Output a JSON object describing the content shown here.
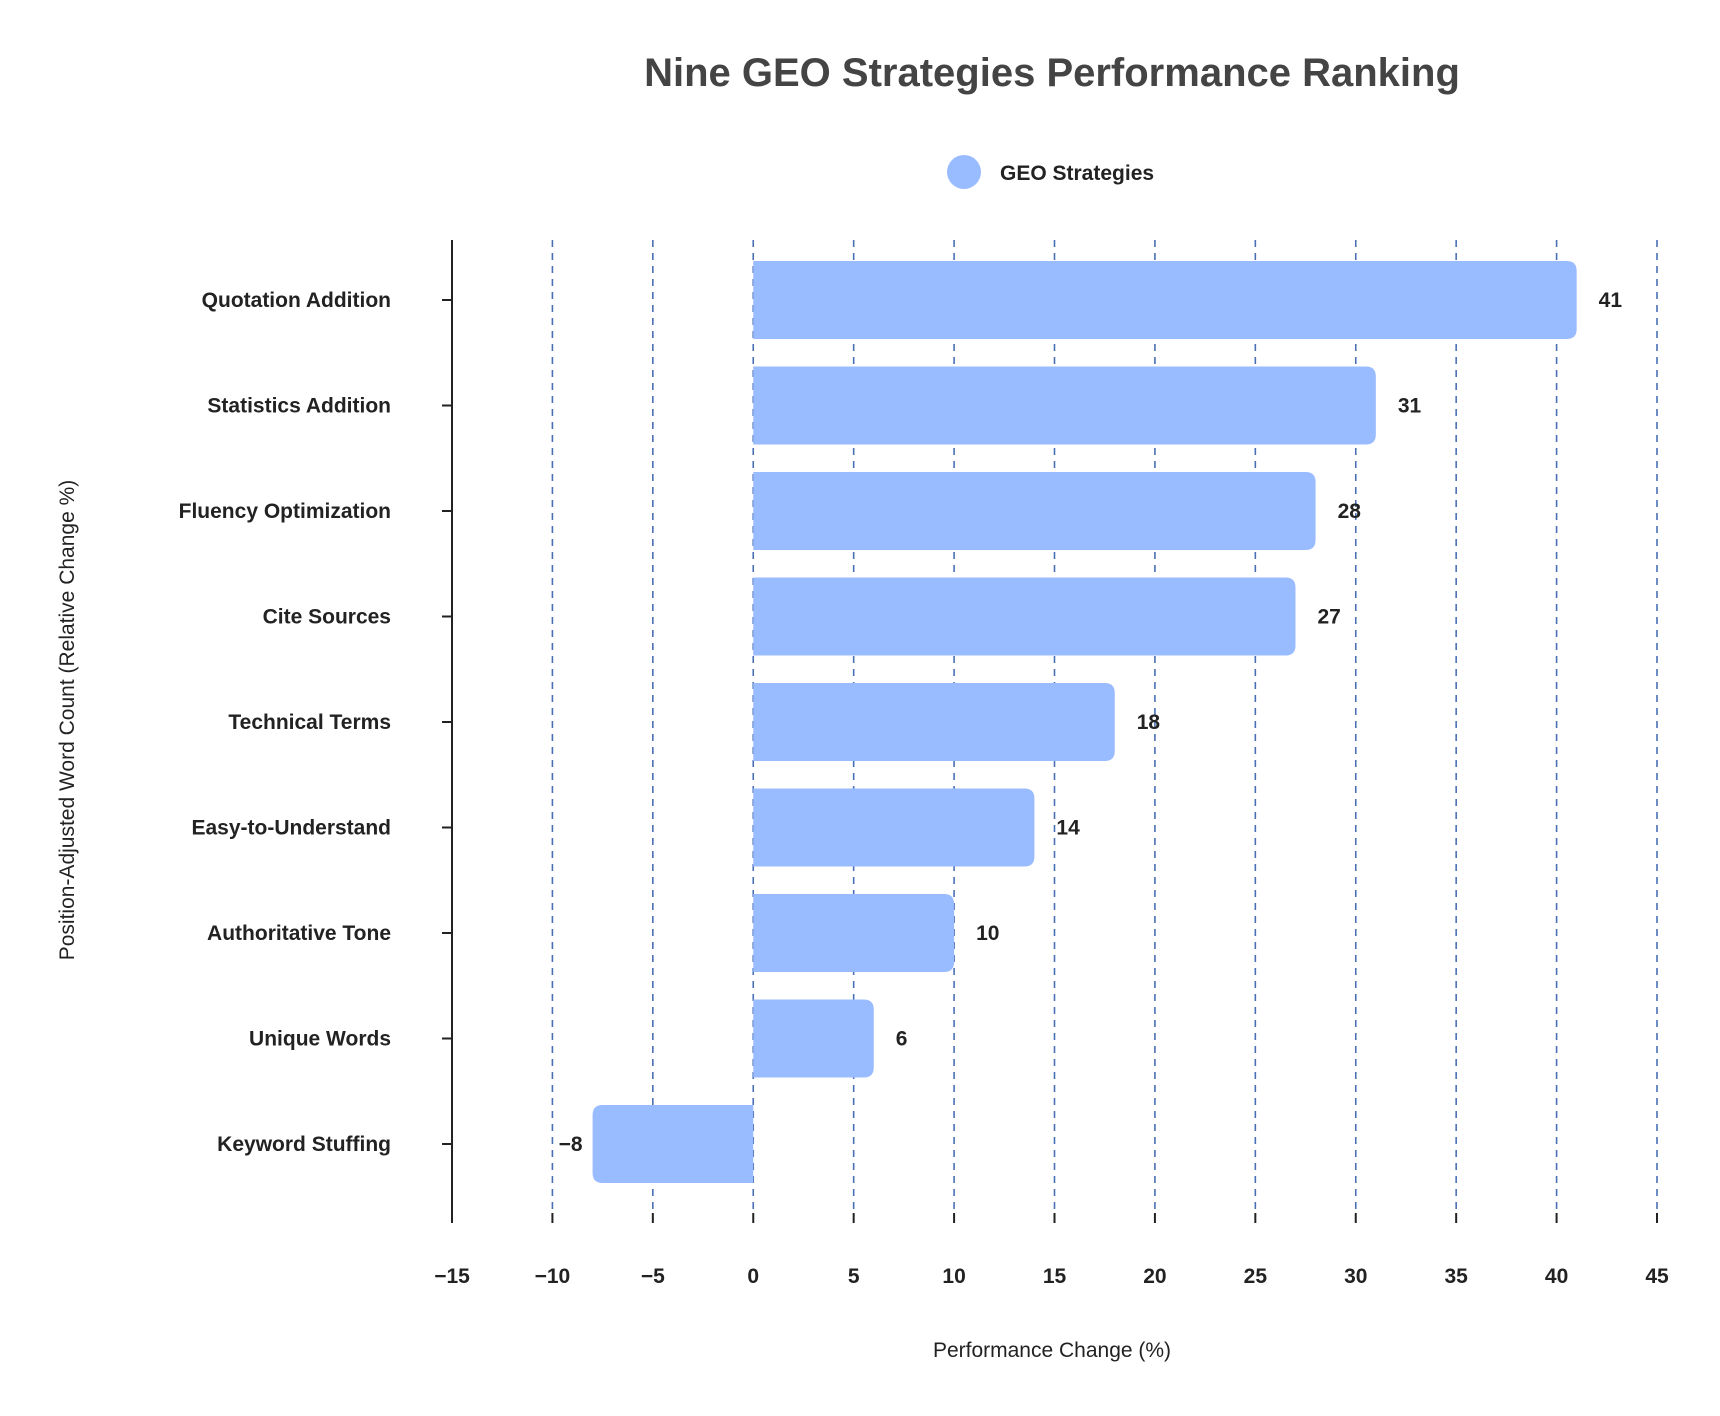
{
  "colors": {
    "bar": "#99bbff",
    "grid": "#4a6fb5",
    "axis": "#222222",
    "text": "#222222",
    "title": "#444444"
  },
  "chart_data": {
    "type": "bar",
    "orientation": "horizontal",
    "title": "Nine GEO Strategies Performance Ranking",
    "xlabel": "Performance Change (%)",
    "ylabel": "Position-Adjusted Word Count (Relative Change %)",
    "legend": {
      "placement": "top-center",
      "entries": [
        "GEO Strategies"
      ]
    },
    "grid": {
      "x": true,
      "y": false,
      "style": "dashed"
    },
    "xlim": [
      -15,
      45
    ],
    "xticks": [
      -15,
      -10,
      -5,
      0,
      5,
      10,
      15,
      20,
      25,
      30,
      35,
      40,
      45
    ],
    "xtick_labels": [
      "−15",
      "−10",
      "−5",
      "0",
      "5",
      "10",
      "15",
      "20",
      "25",
      "30",
      "35",
      "40",
      "45"
    ],
    "categories": [
      "Quotation Addition",
      "Statistics Addition",
      "Fluency Optimization",
      "Cite Sources",
      "Technical Terms",
      "Easy-to-Understand",
      "Authoritative Tone",
      "Unique Words",
      "Keyword Stuffing"
    ],
    "series": [
      {
        "name": "GEO Strategies",
        "values": [
          41,
          31,
          28,
          27,
          18,
          14,
          10,
          6,
          -8
        ],
        "data_labels": [
          "41",
          "31",
          "28",
          "27",
          "18",
          "14",
          "10",
          "6",
          "−8"
        ]
      }
    ]
  }
}
